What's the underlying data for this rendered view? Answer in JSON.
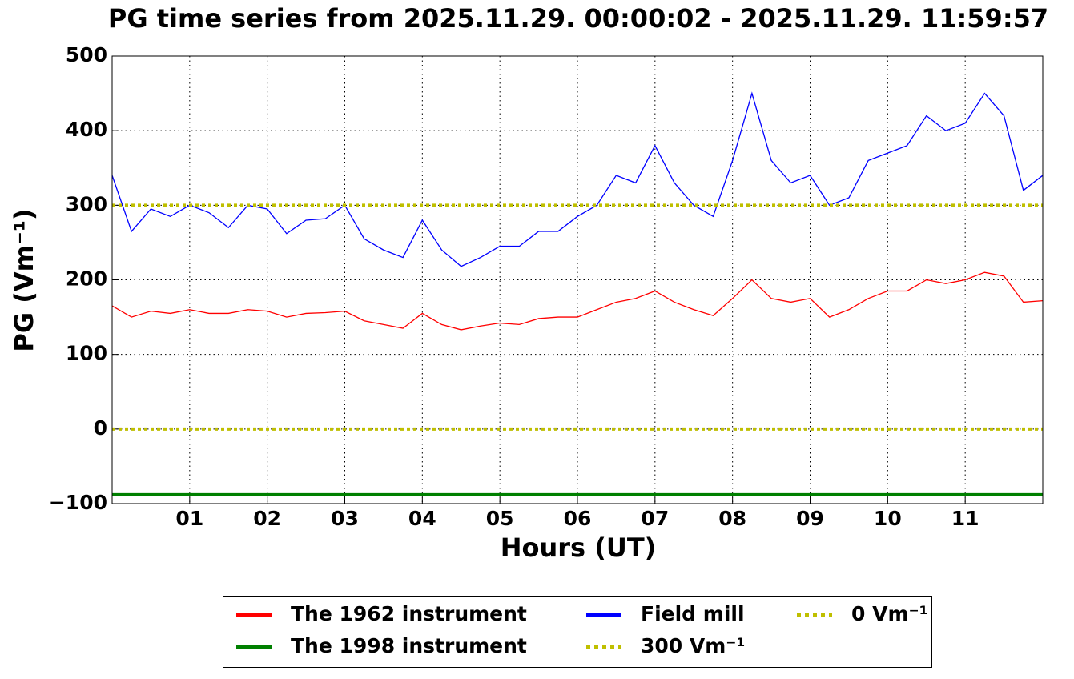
{
  "chart_data": {
    "type": "line",
    "title": "PG time series from 2025.11.29. 00:00:02 - 2025.11.29. 11:59:57",
    "x_label": "Hours (UT)",
    "y_label": "PG (Vm⁻¹)",
    "x": [
      0,
      0.25,
      0.5,
      0.75,
      1,
      1.25,
      1.5,
      1.75,
      2,
      2.25,
      2.5,
      2.75,
      3,
      3.25,
      3.5,
      3.75,
      4,
      4.25,
      4.5,
      4.75,
      5,
      5.25,
      5.5,
      5.75,
      6,
      6.25,
      6.5,
      6.75,
      7,
      7.25,
      7.5,
      7.75,
      8,
      8.25,
      8.5,
      8.75,
      9,
      9.25,
      9.5,
      9.75,
      10,
      10.25,
      10.5,
      10.75,
      11,
      11.25,
      11.5,
      11.75,
      12
    ],
    "series": [
      {
        "name": "The 1962 instrument",
        "color": "#ff0000",
        "width": 1.3,
        "values": [
          165,
          150,
          158,
          155,
          160,
          155,
          155,
          160,
          158,
          150,
          155,
          156,
          158,
          145,
          140,
          135,
          155,
          140,
          133,
          138,
          142,
          140,
          148,
          150,
          150,
          160,
          170,
          175,
          185,
          170,
          160,
          152,
          175,
          200,
          175,
          170,
          175,
          150,
          160,
          175,
          185,
          185,
          200,
          195,
          200,
          210,
          205,
          170,
          172
        ]
      },
      {
        "name": "The 1998 instrument",
        "color": "#008000",
        "width": 4,
        "values": [
          -88,
          -88,
          -88,
          -88,
          -88,
          -88,
          -88,
          -88,
          -88,
          -88,
          -88,
          -88,
          -88,
          -88,
          -88,
          -88,
          -88,
          -88,
          -88,
          -88,
          -88,
          -88,
          -88,
          -88,
          -88,
          -88,
          -88,
          -88,
          -88,
          -88,
          -88,
          -88,
          -88,
          -88,
          -88,
          -88,
          -88,
          -88,
          -88,
          -88,
          -88,
          -88,
          -88,
          -88,
          -88,
          -88,
          -88,
          -88,
          -88
        ]
      },
      {
        "name": "Field mill",
        "color": "#0000ff",
        "width": 1.3,
        "values": [
          340,
          265,
          295,
          285,
          300,
          290,
          270,
          300,
          295,
          262,
          280,
          282,
          300,
          255,
          240,
          230,
          280,
          240,
          218,
          230,
          245,
          245,
          265,
          265,
          285,
          300,
          340,
          330,
          380,
          330,
          300,
          285,
          360,
          450,
          360,
          330,
          340,
          300,
          310,
          360,
          370,
          380,
          420,
          400,
          410,
          450,
          420,
          320,
          340
        ]
      }
    ],
    "hlines": [
      {
        "name": "300 Vm⁻¹",
        "value": 300,
        "color": "#bfbf00"
      },
      {
        "name": "0 Vm⁻¹",
        "value": 0,
        "color": "#bfbf00"
      }
    ],
    "xlim": [
      0,
      12
    ],
    "xticks": [
      {
        "value": 1,
        "label": "01"
      },
      {
        "value": 2,
        "label": "02"
      },
      {
        "value": 3,
        "label": "03"
      },
      {
        "value": 4,
        "label": "04"
      },
      {
        "value": 5,
        "label": "05"
      },
      {
        "value": 6,
        "label": "06"
      },
      {
        "value": 7,
        "label": "07"
      },
      {
        "value": 8,
        "label": "08"
      },
      {
        "value": 9,
        "label": "09"
      },
      {
        "value": 10,
        "label": "10"
      },
      {
        "value": 11,
        "label": "11"
      }
    ],
    "ylim": [
      -100,
      500
    ],
    "yticks": [
      {
        "value": -100,
        "label": "−100"
      },
      0,
      100,
      200,
      300,
      400,
      500
    ],
    "grid": true,
    "legend": "below"
  }
}
